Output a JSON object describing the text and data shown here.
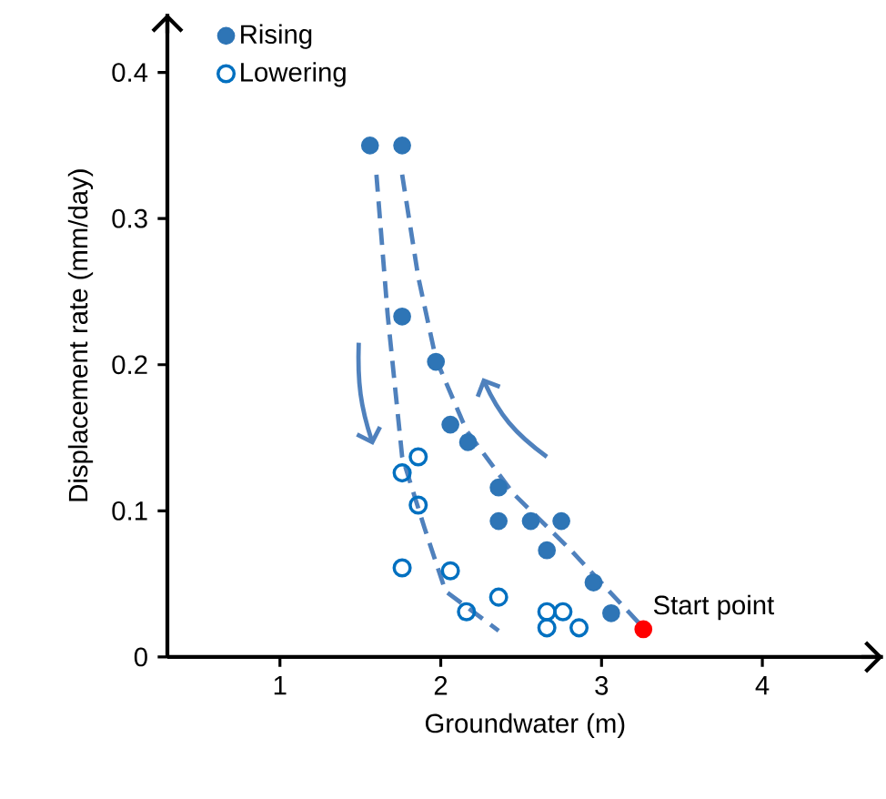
{
  "chart_data": {
    "type": "scatter",
    "xlabel": "Groundwater (m)",
    "ylabel": "Displacement rate (mm/day)",
    "xlim": [
      0.3,
      4.75
    ],
    "ylim": [
      0,
      0.44
    ],
    "xticks": [
      1,
      2,
      3,
      4
    ],
    "yticks": [
      0,
      0.1,
      0.2,
      0.3,
      0.4
    ],
    "legend": "top left",
    "grid": false,
    "series": [
      {
        "name": "Rising",
        "color": "#2e75b6",
        "marker": "circle",
        "x": [
          1.56,
          1.76,
          1.76,
          1.97,
          2.06,
          2.17,
          2.36,
          2.36,
          2.56,
          2.75,
          2.66,
          2.95,
          3.06
        ],
        "values": [
          0.35,
          0.35,
          0.233,
          0.202,
          0.159,
          0.147,
          0.116,
          0.093,
          0.093,
          0.093,
          0.073,
          0.051,
          0.03
        ]
      },
      {
        "name": "Lowering",
        "color": "#0070c0",
        "marker": "open circle",
        "x": [
          1.86,
          1.76,
          1.86,
          1.76,
          2.06,
          2.36,
          2.16,
          2.66,
          2.76,
          2.66,
          2.86
        ],
        "values": [
          0.137,
          0.126,
          0.104,
          0.061,
          0.059,
          0.041,
          0.031,
          0.031,
          0.031,
          0.02,
          0.02
        ]
      },
      {
        "color": "#ff0000",
        "marker": "circle",
        "x": [
          3.26
        ],
        "values": [
          0.019
        ]
      },
      {
        "type": "line",
        "color": "#4f81bd",
        "line_style": "dashed",
        "marker": "none",
        "x": [
          1.6,
          1.67,
          1.76,
          1.9,
          2.03,
          2.36
        ],
        "values": [
          0.33,
          0.234,
          0.137,
          0.088,
          0.045,
          0.018
        ]
      },
      {
        "type": "line",
        "color": "#4f81bd",
        "line_style": "dashed",
        "marker": "none",
        "x": [
          1.76,
          1.86,
          1.97,
          2.16,
          2.45,
          2.81,
          3.26
        ],
        "values": [
          0.33,
          0.26,
          0.204,
          0.155,
          0.112,
          0.073,
          0.02
        ]
      }
    ],
    "annotations": [
      {
        "text": "Start point",
        "x": 3.26,
        "y": 0.019
      }
    ]
  }
}
